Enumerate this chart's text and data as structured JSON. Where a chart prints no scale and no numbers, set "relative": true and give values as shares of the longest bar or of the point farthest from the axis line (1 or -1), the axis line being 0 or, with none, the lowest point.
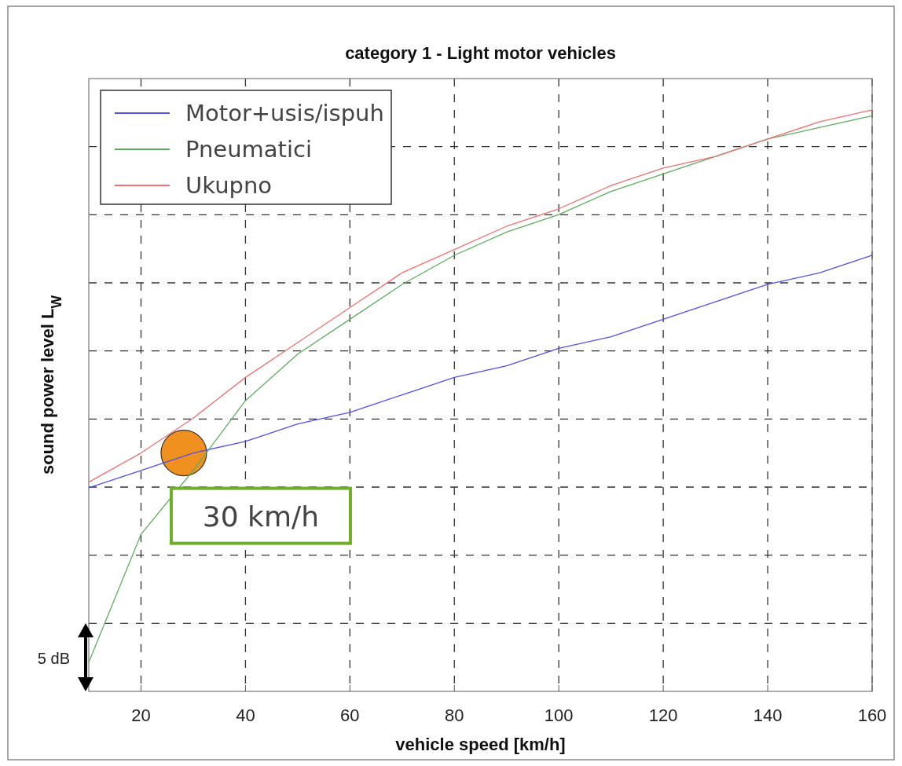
{
  "chart_data": {
    "type": "line",
    "title": "category 1 - Light motor vehicles",
    "xlabel": "vehicle speed [km/h]",
    "ylabel": "sound power level L$_{W}$",
    "relative": true,
    "x": [
      10,
      20,
      30,
      40,
      50,
      60,
      70,
      80,
      90,
      100,
      110,
      120,
      130,
      140,
      150,
      160
    ],
    "xlim": [
      10,
      160
    ],
    "xticks": [
      20,
      40,
      60,
      80,
      100,
      120,
      140,
      160
    ],
    "grid": true,
    "legend": "top left",
    "line_style": "solid",
    "series": [
      {
        "name": "Motor+usis/ispuh",
        "color": "#5050ee",
        "values": [
          0.35,
          0.38,
          0.41,
          0.43,
          0.46,
          0.48,
          0.51,
          0.54,
          0.56,
          0.59,
          0.61,
          0.64,
          0.67,
          0.7,
          0.72,
          0.75
        ]
      },
      {
        "name": "Pneumatici",
        "color": "#5cae5c",
        "values": [
          0.05,
          0.27,
          0.38,
          0.5,
          0.58,
          0.64,
          0.7,
          0.75,
          0.79,
          0.82,
          0.86,
          0.89,
          0.92,
          0.95,
          0.97,
          0.99
        ]
      },
      {
        "name": "Ukupno",
        "color": "#f07070",
        "values": [
          0.36,
          0.41,
          0.47,
          0.54,
          0.6,
          0.66,
          0.72,
          0.76,
          0.8,
          0.83,
          0.87,
          0.9,
          0.92,
          0.95,
          0.98,
          1.0
        ]
      }
    ],
    "annotations": [
      {
        "text": "30 km/h",
        "x": 30,
        "y": 0.41
      },
      "5 dB"
    ]
  }
}
